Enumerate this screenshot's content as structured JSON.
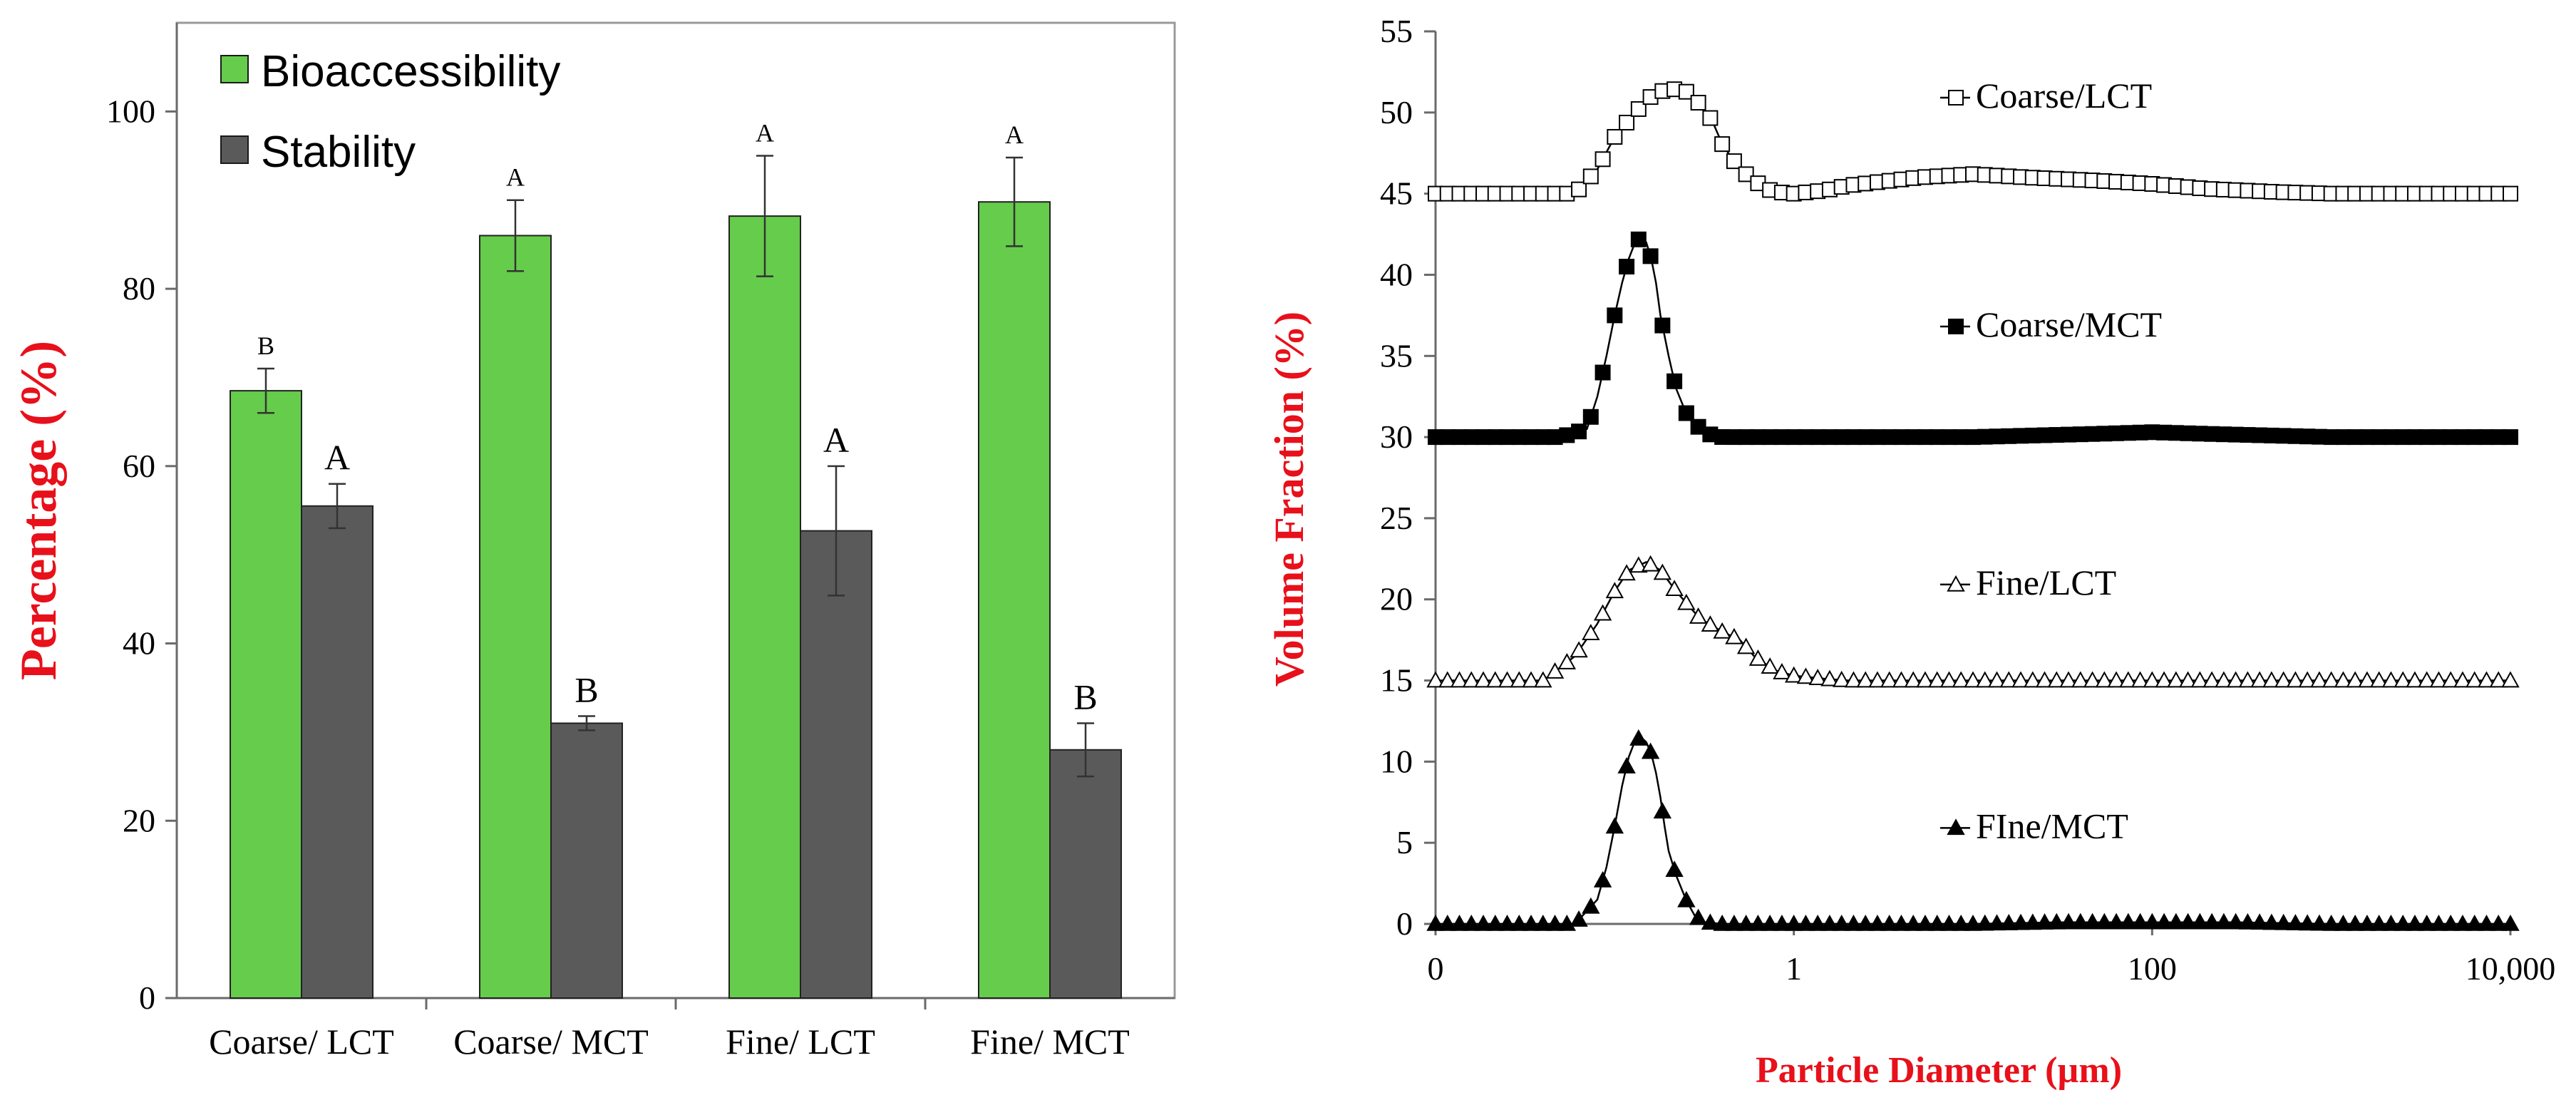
{
  "chart_data": [
    {
      "type": "bar",
      "title": "",
      "xlabel": "",
      "ylabel": "Percentage (%)",
      "ylim": [
        0,
        100
      ],
      "yticks": [
        0,
        20,
        40,
        60,
        80,
        100
      ],
      "legend_position": "top-left",
      "categories": [
        "Coarse/ LCT",
        "Coarse/ MCT",
        "Fine/ LCT",
        "Fine/ MCT"
      ],
      "series": [
        {
          "name": "Bioaccessibility",
          "color": "#66cc4c",
          "values": [
            68.5,
            86,
            88.2,
            89.8
          ],
          "errors": [
            2.5,
            4,
            6.8,
            5
          ],
          "labels": [
            "B",
            "A",
            "A",
            "A"
          ]
        },
        {
          "name": "Stability",
          "color": "#5a5a5a",
          "values": [
            55.5,
            31,
            52.7,
            28
          ],
          "errors": [
            2.5,
            0.8,
            7.3,
            3
          ],
          "labels": [
            "A",
            "B",
            "A",
            "B"
          ]
        }
      ]
    },
    {
      "type": "line",
      "title": "",
      "xlabel": "Particle Diameter (µm)",
      "ylabel": "Volume Fraction (%)",
      "x_scale": "log",
      "xlim": [
        0.01,
        10000
      ],
      "xticks": [
        0.01,
        1,
        100,
        10000
      ],
      "xtick_labels": [
        "0",
        "1",
        "100",
        "10,000"
      ],
      "ylim": [
        0,
        55
      ],
      "yticks": [
        0,
        5,
        10,
        15,
        20,
        25,
        30,
        35,
        40,
        45,
        50,
        55
      ],
      "series": [
        {
          "name": "Coarse/LCT",
          "marker": "open-square",
          "x": [
            0.01,
            0.03,
            0.06,
            0.08,
            0.1,
            0.13,
            0.16,
            0.2,
            0.25,
            0.3,
            0.35,
            0.4,
            0.5,
            0.6,
            0.7,
            0.8,
            1,
            1.5,
            2,
            5,
            10,
            20,
            50,
            100,
            200,
            500,
            1000,
            10000
          ],
          "y": [
            45,
            45,
            45,
            46.5,
            48.5,
            50,
            51,
            51.5,
            51.3,
            50.5,
            49.5,
            48,
            46.5,
            45.8,
            45.3,
            45.1,
            45,
            45.2,
            45.5,
            46,
            46.2,
            46,
            45.8,
            45.6,
            45.3,
            45.1,
            45,
            45
          ]
        },
        {
          "name": "Coarse/MCT",
          "marker": "filled-square",
          "x": [
            0.01,
            0.05,
            0.07,
            0.08,
            0.09,
            0.1,
            0.11,
            0.12,
            0.13,
            0.14,
            0.15,
            0.16,
            0.17,
            0.18,
            0.2,
            0.22,
            0.25,
            0.3,
            0.35,
            0.4,
            0.5,
            1,
            10,
            50,
            100,
            200,
            1000,
            10000
          ],
          "y": [
            30,
            30,
            30.5,
            32.5,
            35,
            37.5,
            39.5,
            41,
            42,
            42.3,
            42,
            41,
            39.5,
            37.5,
            35,
            33,
            31.5,
            30.5,
            30.1,
            30,
            30,
            30,
            30,
            30.2,
            30.3,
            30.2,
            30,
            30
          ]
        },
        {
          "name": "Fine/LCT",
          "marker": "open-triangle",
          "x": [
            0.01,
            0.04,
            0.06,
            0.08,
            0.1,
            0.12,
            0.15,
            0.18,
            0.22,
            0.3,
            0.4,
            0.5,
            0.6,
            0.7,
            0.8,
            1,
            1.5,
            2,
            3,
            10,
            100,
            10000
          ],
          "y": [
            15,
            15,
            16.5,
            18.5,
            20.5,
            21.8,
            22.3,
            21.8,
            20.5,
            18.8,
            18,
            17.5,
            16.5,
            16,
            15.6,
            15.3,
            15.1,
            15,
            15,
            15,
            15,
            15
          ]
        },
        {
          "name": "FIne/MCT",
          "marker": "filled-triangle",
          "x": [
            0.01,
            0.06,
            0.08,
            0.09,
            0.1,
            0.11,
            0.12,
            0.13,
            0.14,
            0.15,
            0.16,
            0.17,
            0.18,
            0.19,
            0.2,
            0.22,
            0.25,
            0.28,
            0.32,
            0.4,
            0.5,
            1,
            10,
            30,
            100,
            300,
            1000,
            10000
          ],
          "y": [
            0,
            0,
            1.5,
            3.5,
            6,
            8.5,
            10.3,
            11.3,
            11.5,
            11.2,
            10.5,
            9.3,
            7.8,
            6,
            4.5,
            3,
            1.5,
            0.5,
            0.1,
            0,
            0,
            0,
            0,
            0.1,
            0.1,
            0.1,
            0,
            0
          ]
        }
      ]
    }
  ]
}
